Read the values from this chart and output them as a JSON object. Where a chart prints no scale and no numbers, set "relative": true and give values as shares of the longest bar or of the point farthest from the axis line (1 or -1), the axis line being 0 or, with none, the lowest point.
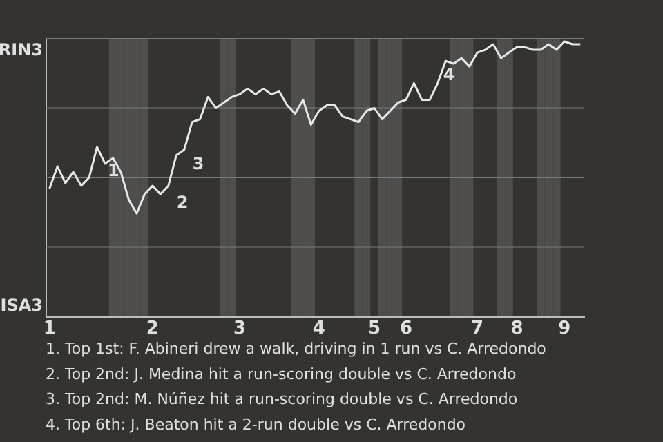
{
  "chart_data": {
    "type": "line",
    "relative": true,
    "marker": "none",
    "line_style": "solid",
    "categories": [
      "1",
      null,
      null,
      null,
      null,
      null,
      null,
      null,
      null,
      null,
      null,
      null,
      null,
      "2",
      null,
      null,
      null,
      null,
      null,
      null,
      null,
      null,
      null,
      null,
      "3",
      null,
      null,
      null,
      null,
      null,
      null,
      null,
      null,
      null,
      "4",
      null,
      null,
      null,
      null,
      null,
      null,
      "5",
      null,
      null,
      null,
      "6",
      null,
      null,
      null,
      null,
      null,
      null,
      null,
      null,
      "7",
      null,
      null,
      null,
      null,
      "8",
      null,
      null,
      null,
      null,
      null,
      "9",
      null,
      null
    ],
    "series": [
      {
        "type": "bar",
        "color": "#4f4e4c",
        "values": [
          null,
          null,
          null,
          null,
          null,
          null,
          null,
          null,
          1,
          1,
          1,
          1,
          1,
          null,
          null,
          null,
          null,
          null,
          null,
          null,
          null,
          null,
          1,
          1,
          null,
          null,
          null,
          null,
          null,
          null,
          null,
          1,
          1,
          1,
          null,
          null,
          null,
          null,
          null,
          1,
          1,
          null,
          1,
          1,
          1,
          null,
          null,
          null,
          null,
          null,
          null,
          1,
          1,
          1,
          null,
          null,
          null,
          1,
          1,
          null,
          null,
          null,
          1,
          1,
          1,
          null,
          null,
          null
        ]
      },
      {
        "color": "#e8e8e8",
        "values": [
          0.46,
          0.54,
          0.48,
          0.52,
          0.47,
          0.5,
          0.61,
          0.55,
          0.57,
          0.52,
          0.42,
          0.37,
          0.44,
          0.47,
          0.44,
          0.47,
          0.58,
          0.6,
          0.7,
          0.71,
          0.79,
          0.75,
          0.77,
          0.79,
          0.8,
          0.82,
          0.8,
          0.82,
          0.8,
          0.81,
          0.76,
          0.73,
          0.78,
          0.69,
          0.74,
          0.76,
          0.76,
          0.72,
          0.71,
          0.7,
          0.74,
          0.75,
          0.71,
          0.74,
          0.77,
          0.78,
          0.84,
          0.78,
          0.78,
          0.84,
          0.92,
          0.91,
          0.93,
          0.9,
          0.95,
          0.96,
          0.98,
          0.93,
          0.95,
          0.97,
          0.97,
          0.96,
          0.96,
          0.98,
          0.96,
          0.99,
          0.98,
          0.98
        ]
      }
    ],
    "ref_lines": [
      {
        "axis": "y",
        "value": 0.25,
        "color": "#7a7a7a"
      },
      {
        "axis": "y",
        "value": 0.5,
        "color": "#7a7a7a"
      },
      {
        "axis": "y",
        "value": 0.75,
        "color": "#7a7a7a"
      },
      {
        "axis": "y",
        "value": 1,
        "color": "#7a7a7a"
      }
    ],
    "annotations": [
      "RIN3",
      "ISA3",
      "1",
      "2",
      "3",
      "4",
      "1. Top 1st: F. Abineri drew a walk, driving in 1 run vs C. Arredondo",
      "2. Top 2nd: J. Medina hit a run-scoring double vs C. Arredondo",
      "3. Top 2nd: M. Núñez hit a run-scoring double vs C. Arredondo",
      "4. Top 6th: J. Beaton hit a 2-run double vs C. Arredondo"
    ]
  }
}
